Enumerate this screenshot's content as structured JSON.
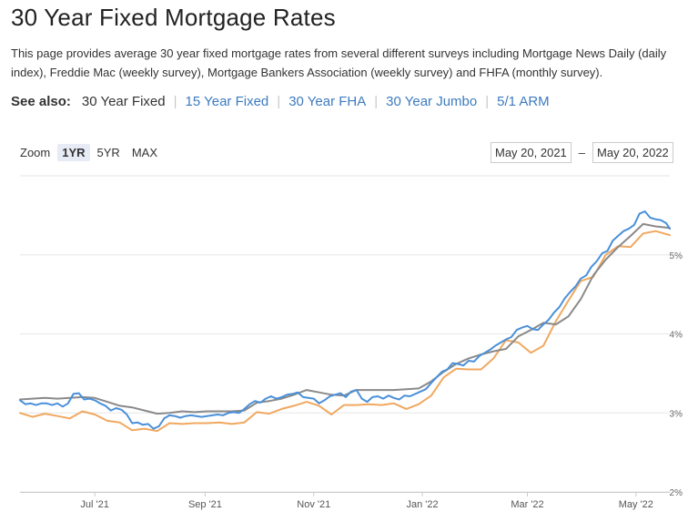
{
  "page": {
    "title": "30 Year Fixed Mortgage Rates",
    "description": "This page provides average 30 year fixed mortgage rates from several different surveys including Mortgage News Daily (daily index), Freddie Mac (weekly survey), Mortgage Bankers Association (weekly survey) and FHFA (monthly survey).",
    "see_also_label": "See also:",
    "see_also": [
      {
        "label": "30 Year Fixed",
        "current": true
      },
      {
        "label": "15 Year Fixed",
        "current": false
      },
      {
        "label": "30 Year FHA",
        "current": false
      },
      {
        "label": "30 Year Jumbo",
        "current": false
      },
      {
        "label": "5/1 ARM",
        "current": false
      }
    ]
  },
  "controls": {
    "zoom_label": "Zoom",
    "zoom_options": [
      "1YR",
      "5YR",
      "MAX"
    ],
    "zoom_selected": "1YR",
    "range_from": "May 20, 2021",
    "range_dash": "–",
    "range_to": "May 20, 2022"
  },
  "chart_data": {
    "type": "line",
    "xlim": [
      "2021-05-20",
      "2022-05-20"
    ],
    "ylim": [
      2,
      6
    ],
    "grid": true,
    "x_tick_labels": [
      {
        "date": "2021-07-01",
        "label": "Jul '21"
      },
      {
        "date": "2021-09-01",
        "label": "Sep '21"
      },
      {
        "date": "2021-11-01",
        "label": "Nov '21"
      },
      {
        "date": "2022-01-01",
        "label": "Jan '22"
      },
      {
        "date": "2022-03-01",
        "label": "Mar '22"
      },
      {
        "date": "2022-05-01",
        "label": "May '22"
      }
    ],
    "y_tick_labels": [
      {
        "value": 2,
        "label": "2%"
      },
      {
        "value": 3,
        "label": "3%"
      },
      {
        "value": 4,
        "label": "4%"
      },
      {
        "value": 5,
        "label": "5%"
      }
    ],
    "series": [
      {
        "color": "#4a90d9",
        "points": [
          [
            "2021-05-20",
            3.16
          ],
          [
            "2021-05-23",
            3.11
          ],
          [
            "2021-05-26",
            3.12
          ],
          [
            "2021-05-29",
            3.1
          ],
          [
            "2021-06-01",
            3.12
          ],
          [
            "2021-06-04",
            3.12
          ],
          [
            "2021-06-07",
            3.1
          ],
          [
            "2021-06-10",
            3.12
          ],
          [
            "2021-06-13",
            3.08
          ],
          [
            "2021-06-16",
            3.12
          ],
          [
            "2021-06-19",
            3.24
          ],
          [
            "2021-06-22",
            3.25
          ],
          [
            "2021-06-25",
            3.17
          ],
          [
            "2021-06-28",
            3.18
          ],
          [
            "2021-07-01",
            3.16
          ],
          [
            "2021-07-04",
            3.12
          ],
          [
            "2021-07-07",
            3.09
          ],
          [
            "2021-07-10",
            3.03
          ],
          [
            "2021-07-13",
            3.06
          ],
          [
            "2021-07-16",
            3.04
          ],
          [
            "2021-07-19",
            2.98
          ],
          [
            "2021-07-22",
            2.87
          ],
          [
            "2021-07-25",
            2.88
          ],
          [
            "2021-07-28",
            2.85
          ],
          [
            "2021-07-31",
            2.86
          ],
          [
            "2021-08-03",
            2.8
          ],
          [
            "2021-08-06",
            2.83
          ],
          [
            "2021-08-09",
            2.93
          ],
          [
            "2021-08-12",
            2.97
          ],
          [
            "2021-08-15",
            2.96
          ],
          [
            "2021-08-18",
            2.94
          ],
          [
            "2021-08-21",
            2.96
          ],
          [
            "2021-08-24",
            2.97
          ],
          [
            "2021-08-27",
            2.96
          ],
          [
            "2021-08-30",
            2.95
          ],
          [
            "2021-09-02",
            2.96
          ],
          [
            "2021-09-05",
            2.97
          ],
          [
            "2021-09-08",
            2.98
          ],
          [
            "2021-09-11",
            2.97
          ],
          [
            "2021-09-14",
            3.0
          ],
          [
            "2021-09-17",
            3.01
          ],
          [
            "2021-09-20",
            3.0
          ],
          [
            "2021-09-23",
            3.05
          ],
          [
            "2021-09-26",
            3.11
          ],
          [
            "2021-09-29",
            3.15
          ],
          [
            "2021-10-02",
            3.13
          ],
          [
            "2021-10-05",
            3.18
          ],
          [
            "2021-10-08",
            3.21
          ],
          [
            "2021-10-11",
            3.18
          ],
          [
            "2021-10-14",
            3.2
          ],
          [
            "2021-10-17",
            3.23
          ],
          [
            "2021-10-20",
            3.24
          ],
          [
            "2021-10-23",
            3.26
          ],
          [
            "2021-10-26",
            3.2
          ],
          [
            "2021-10-29",
            3.19
          ],
          [
            "2021-11-01",
            3.18
          ],
          [
            "2021-11-04",
            3.12
          ],
          [
            "2021-11-07",
            3.16
          ],
          [
            "2021-11-10",
            3.21
          ],
          [
            "2021-11-13",
            3.23
          ],
          [
            "2021-11-16",
            3.25
          ],
          [
            "2021-11-19",
            3.2
          ],
          [
            "2021-11-22",
            3.27
          ],
          [
            "2021-11-25",
            3.29
          ],
          [
            "2021-11-28",
            3.18
          ],
          [
            "2021-12-01",
            3.14
          ],
          [
            "2021-12-04",
            3.2
          ],
          [
            "2021-12-07",
            3.21
          ],
          [
            "2021-12-10",
            3.18
          ],
          [
            "2021-12-13",
            3.22
          ],
          [
            "2021-12-16",
            3.19
          ],
          [
            "2021-12-19",
            3.17
          ],
          [
            "2021-12-22",
            3.22
          ],
          [
            "2021-12-25",
            3.21
          ],
          [
            "2021-12-28",
            3.24
          ],
          [
            "2021-12-31",
            3.27
          ],
          [
            "2022-01-03",
            3.3
          ],
          [
            "2022-01-06",
            3.38
          ],
          [
            "2022-01-09",
            3.45
          ],
          [
            "2022-01-12",
            3.52
          ],
          [
            "2022-01-15",
            3.55
          ],
          [
            "2022-01-18",
            3.63
          ],
          [
            "2022-01-21",
            3.62
          ],
          [
            "2022-01-24",
            3.6
          ],
          [
            "2022-01-27",
            3.66
          ],
          [
            "2022-01-30",
            3.65
          ],
          [
            "2022-02-02",
            3.72
          ],
          [
            "2022-02-05",
            3.76
          ],
          [
            "2022-02-08",
            3.8
          ],
          [
            "2022-02-11",
            3.85
          ],
          [
            "2022-02-14",
            3.89
          ],
          [
            "2022-02-17",
            3.93
          ],
          [
            "2022-02-20",
            3.96
          ],
          [
            "2022-02-23",
            4.05
          ],
          [
            "2022-02-26",
            4.08
          ],
          [
            "2022-03-01",
            4.1
          ],
          [
            "2022-03-04",
            4.06
          ],
          [
            "2022-03-07",
            4.05
          ],
          [
            "2022-03-10",
            4.12
          ],
          [
            "2022-03-13",
            4.18
          ],
          [
            "2022-03-16",
            4.27
          ],
          [
            "2022-03-19",
            4.34
          ],
          [
            "2022-03-22",
            4.45
          ],
          [
            "2022-03-25",
            4.53
          ],
          [
            "2022-03-28",
            4.6
          ],
          [
            "2022-03-31",
            4.7
          ],
          [
            "2022-04-03",
            4.74
          ],
          [
            "2022-04-06",
            4.85
          ],
          [
            "2022-04-09",
            4.92
          ],
          [
            "2022-04-12",
            5.02
          ],
          [
            "2022-04-15",
            5.05
          ],
          [
            "2022-04-18",
            5.18
          ],
          [
            "2022-04-21",
            5.24
          ],
          [
            "2022-04-24",
            5.3
          ],
          [
            "2022-04-27",
            5.33
          ],
          [
            "2022-04-30",
            5.38
          ],
          [
            "2022-05-03",
            5.52
          ],
          [
            "2022-05-06",
            5.55
          ],
          [
            "2022-05-09",
            5.47
          ],
          [
            "2022-05-12",
            5.45
          ],
          [
            "2022-05-15",
            5.44
          ],
          [
            "2022-05-18",
            5.4
          ],
          [
            "2022-05-20",
            5.33
          ]
        ]
      },
      {
        "color": "#8a8a8a",
        "points": [
          [
            "2021-05-20",
            3.17
          ],
          [
            "2021-05-27",
            3.18
          ],
          [
            "2021-06-03",
            3.19
          ],
          [
            "2021-06-10",
            3.18
          ],
          [
            "2021-06-17",
            3.19
          ],
          [
            "2021-06-24",
            3.2
          ],
          [
            "2021-07-01",
            3.19
          ],
          [
            "2021-07-08",
            3.14
          ],
          [
            "2021-07-15",
            3.09
          ],
          [
            "2021-07-22",
            3.07
          ],
          [
            "2021-07-29",
            3.03
          ],
          [
            "2021-08-05",
            2.99
          ],
          [
            "2021-08-12",
            3.0
          ],
          [
            "2021-08-19",
            3.02
          ],
          [
            "2021-08-26",
            3.01
          ],
          [
            "2021-09-02",
            3.02
          ],
          [
            "2021-09-09",
            3.02
          ],
          [
            "2021-09-16",
            3.02
          ],
          [
            "2021-09-23",
            3.03
          ],
          [
            "2021-09-30",
            3.13
          ],
          [
            "2021-10-07",
            3.15
          ],
          [
            "2021-10-14",
            3.18
          ],
          [
            "2021-10-21",
            3.23
          ],
          [
            "2021-10-28",
            3.29
          ],
          [
            "2021-11-04",
            3.26
          ],
          [
            "2021-11-11",
            3.23
          ],
          [
            "2021-11-18",
            3.22
          ],
          [
            "2021-11-25",
            3.29
          ],
          [
            "2021-12-02",
            3.29
          ],
          [
            "2021-12-09",
            3.29
          ],
          [
            "2021-12-16",
            3.29
          ],
          [
            "2021-12-23",
            3.3
          ],
          [
            "2021-12-30",
            3.31
          ],
          [
            "2022-01-06",
            3.4
          ],
          [
            "2022-01-13",
            3.52
          ],
          [
            "2022-01-20",
            3.62
          ],
          [
            "2022-01-27",
            3.69
          ],
          [
            "2022-02-03",
            3.74
          ],
          [
            "2022-02-10",
            3.78
          ],
          [
            "2022-02-17",
            3.81
          ],
          [
            "2022-02-24",
            3.97
          ],
          [
            "2022-03-03",
            4.05
          ],
          [
            "2022-03-10",
            4.14
          ],
          [
            "2022-03-17",
            4.12
          ],
          [
            "2022-03-24",
            4.22
          ],
          [
            "2022-03-31",
            4.44
          ],
          [
            "2022-04-07",
            4.74
          ],
          [
            "2022-04-14",
            4.94
          ],
          [
            "2022-04-21",
            5.1
          ],
          [
            "2022-04-28",
            5.24
          ],
          [
            "2022-05-05",
            5.39
          ],
          [
            "2022-05-12",
            5.36
          ],
          [
            "2022-05-20",
            5.34
          ]
        ]
      },
      {
        "color": "#f0a860",
        "points": [
          [
            "2021-05-20",
            3.0
          ],
          [
            "2021-05-27",
            2.95
          ],
          [
            "2021-06-03",
            2.99
          ],
          [
            "2021-06-10",
            2.96
          ],
          [
            "2021-06-17",
            2.93
          ],
          [
            "2021-06-24",
            3.02
          ],
          [
            "2021-07-01",
            2.98
          ],
          [
            "2021-07-08",
            2.9
          ],
          [
            "2021-07-15",
            2.88
          ],
          [
            "2021-07-22",
            2.78
          ],
          [
            "2021-07-29",
            2.8
          ],
          [
            "2021-08-05",
            2.77
          ],
          [
            "2021-08-12",
            2.87
          ],
          [
            "2021-08-19",
            2.86
          ],
          [
            "2021-08-26",
            2.87
          ],
          [
            "2021-09-02",
            2.87
          ],
          [
            "2021-09-09",
            2.88
          ],
          [
            "2021-09-16",
            2.86
          ],
          [
            "2021-09-23",
            2.88
          ],
          [
            "2021-09-30",
            3.01
          ],
          [
            "2021-10-07",
            2.99
          ],
          [
            "2021-10-14",
            3.05
          ],
          [
            "2021-10-21",
            3.09
          ],
          [
            "2021-10-28",
            3.14
          ],
          [
            "2021-11-04",
            3.09
          ],
          [
            "2021-11-11",
            2.98
          ],
          [
            "2021-11-18",
            3.1
          ],
          [
            "2021-11-25",
            3.1
          ],
          [
            "2021-12-02",
            3.11
          ],
          [
            "2021-12-09",
            3.1
          ],
          [
            "2021-12-16",
            3.12
          ],
          [
            "2021-12-23",
            3.05
          ],
          [
            "2021-12-30",
            3.11
          ],
          [
            "2022-01-06",
            3.22
          ],
          [
            "2022-01-13",
            3.45
          ],
          [
            "2022-01-20",
            3.56
          ],
          [
            "2022-01-27",
            3.55
          ],
          [
            "2022-02-03",
            3.55
          ],
          [
            "2022-02-10",
            3.69
          ],
          [
            "2022-02-17",
            3.92
          ],
          [
            "2022-02-24",
            3.89
          ],
          [
            "2022-03-03",
            3.76
          ],
          [
            "2022-03-10",
            3.85
          ],
          [
            "2022-03-17",
            4.16
          ],
          [
            "2022-03-24",
            4.42
          ],
          [
            "2022-03-31",
            4.67
          ],
          [
            "2022-04-07",
            4.72
          ],
          [
            "2022-04-14",
            5.0
          ],
          [
            "2022-04-21",
            5.11
          ],
          [
            "2022-04-28",
            5.1
          ],
          [
            "2022-05-05",
            5.27
          ],
          [
            "2022-05-12",
            5.3
          ],
          [
            "2022-05-20",
            5.25
          ]
        ]
      }
    ]
  }
}
